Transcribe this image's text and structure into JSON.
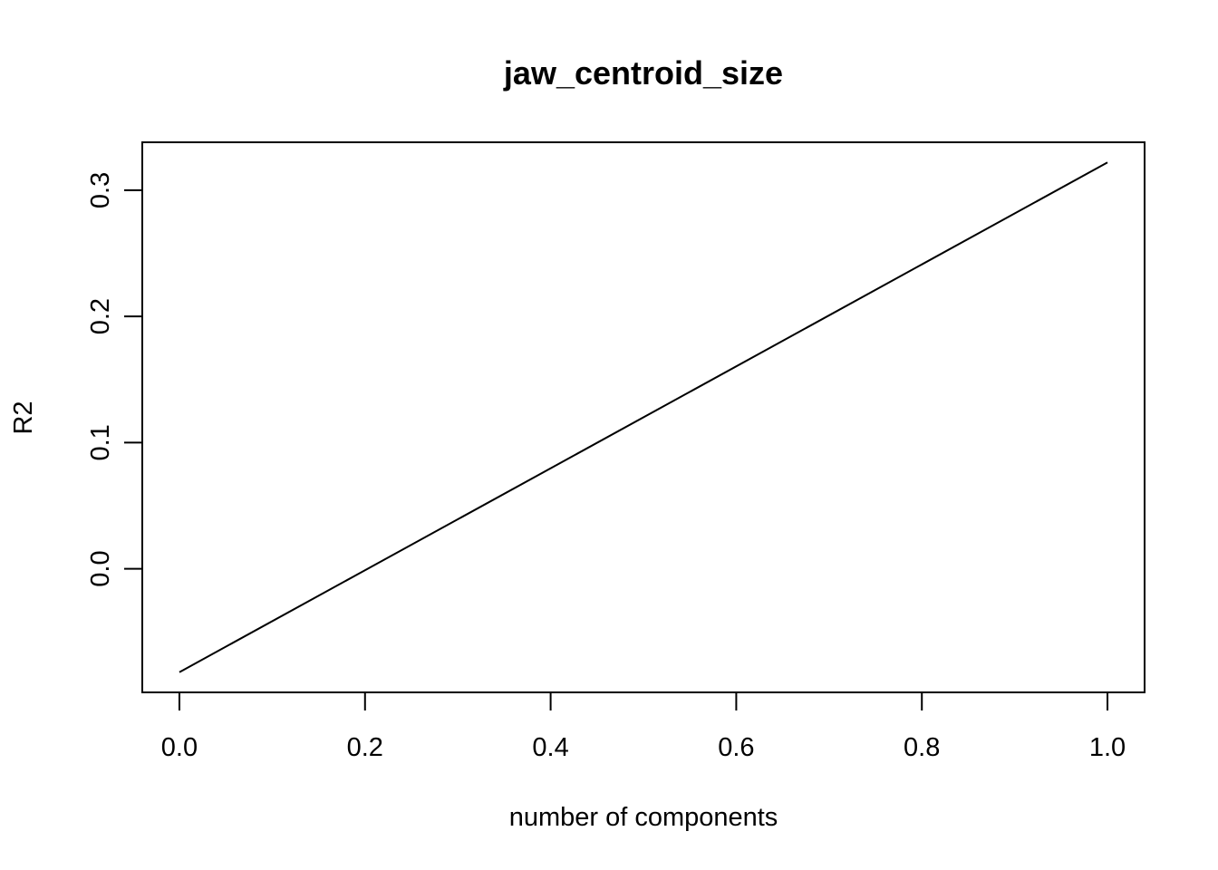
{
  "chart_data": {
    "type": "line",
    "title": "jaw_centroid_size",
    "xlabel": "number of components",
    "ylabel": "R2",
    "xlim": [
      -0.04,
      1.04
    ],
    "ylim": [
      -0.098,
      0.338
    ],
    "x_ticks": [
      0.0,
      0.2,
      0.4,
      0.6,
      0.8,
      1.0
    ],
    "x_tick_labels": [
      "0.0",
      "0.2",
      "0.4",
      "0.6",
      "0.8",
      "1.0"
    ],
    "y_ticks": [
      0.0,
      0.1,
      0.2,
      0.3
    ],
    "y_tick_labels": [
      "0.0",
      "0.1",
      "0.2",
      "0.3"
    ],
    "grid": false,
    "legend": "none",
    "line_color": "#000000",
    "series": [
      {
        "x": [
          0,
          1
        ],
        "y": [
          -0.082,
          0.322
        ]
      }
    ]
  }
}
